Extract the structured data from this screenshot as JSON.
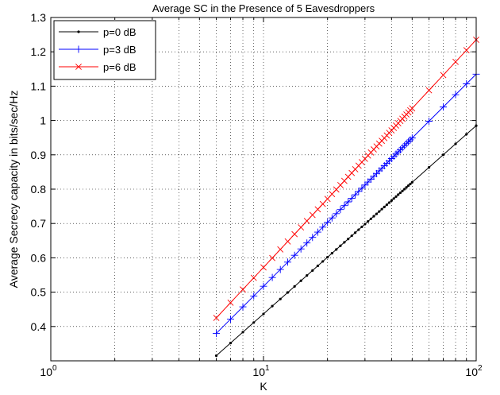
{
  "chart_data": {
    "type": "line",
    "title": "Average SC in the Presence of 5 Eavesdroppers",
    "xlabel": "K",
    "ylabel": "Average Secrecy capacity in bits/sec/Hz",
    "x_scale": "log",
    "xlim": [
      1,
      100
    ],
    "ylim": [
      0.3,
      1.3
    ],
    "x_ticks": [
      1,
      10,
      100
    ],
    "x_tick_labels": [
      {
        "base": "10",
        "exp": "0"
      },
      {
        "base": "10",
        "exp": "1"
      },
      {
        "base": "10",
        "exp": "2"
      }
    ],
    "y_ticks": [
      0.4,
      0.5,
      0.6,
      0.7,
      0.8,
      0.9,
      1.0,
      1.1,
      1.2,
      1.3
    ],
    "y_tick_labels": [
      "0.4",
      "0.5",
      "0.6",
      "0.7",
      "0.8",
      "0.9",
      "1",
      "1.1",
      "1.2",
      "1.3"
    ],
    "grid": true,
    "legend_position": "top-left",
    "series": [
      {
        "name": "p=0 dB",
        "color": "#000000",
        "marker": "dot",
        "x_start": 6,
        "x_end": 100,
        "y_start": 0.315,
        "y_end": 0.985
      },
      {
        "name": "p=3 dB",
        "color": "#0000ff",
        "marker": "plus",
        "x_start": 6,
        "x_end": 100,
        "y_start": 0.38,
        "y_end": 1.135
      },
      {
        "name": "p=6 dB",
        "color": "#ff0000",
        "marker": "x",
        "x_start": 6,
        "x_end": 100,
        "y_start": 0.425,
        "y_end": 1.235
      }
    ],
    "x_points": [
      6,
      7,
      8,
      9,
      10,
      11,
      12,
      13,
      14,
      15,
      16,
      17,
      18,
      19,
      20,
      21,
      22,
      23,
      24,
      25,
      26,
      27,
      28,
      29,
      30,
      31,
      32,
      33,
      34,
      35,
      36,
      37,
      38,
      39,
      40,
      41,
      42,
      43,
      44,
      45,
      46,
      47,
      48,
      49,
      50,
      60,
      70,
      80,
      90,
      100
    ]
  }
}
